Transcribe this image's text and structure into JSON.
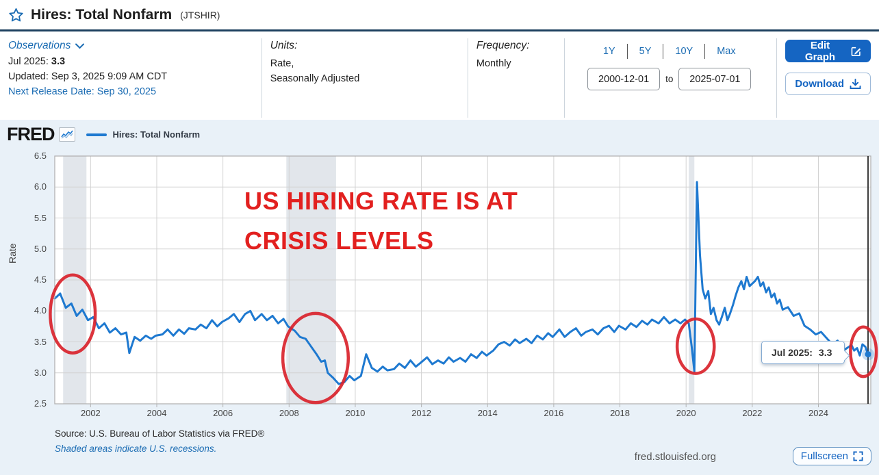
{
  "header": {
    "title": "Hires: Total Nonfarm",
    "series_id": "(JTSHIR)",
    "observations_label": "Observations",
    "latest_obs_label": "Jul 2025:",
    "latest_obs_value": "3.3",
    "updated": "Updated: Sep 3, 2025 9:09 AM CDT",
    "next_release": "Next Release Date: Sep 30, 2025",
    "units_label": "Units:",
    "units_line1": "Rate,",
    "units_line2": "Seasonally Adjusted",
    "frequency_label": "Frequency:",
    "frequency_value": "Monthly",
    "ranges": [
      "1Y",
      "5Y",
      "10Y",
      "Max"
    ],
    "date_from": "2000-12-01",
    "date_separator": "to",
    "date_to": "2025-07-01",
    "edit_graph_label": "Edit Graph",
    "download_label": "Download"
  },
  "chart": {
    "brand": "FRED",
    "legend_label": "Hires: Total Nonfarm",
    "tooltip_date": "Jul 2025:",
    "tooltip_value": "3.3",
    "source_line1": "Source: U.S. Bureau of Labor Statistics via FRED®",
    "source_line2": "Shaded areas indicate U.S. recessions.",
    "watermark": "fred.stlouisfed.org",
    "fullscreen_label": "Fullscreen"
  },
  "colors": {
    "link_blue": "#1b6cb3",
    "button_blue": "#1565c2",
    "series_line": "#1e79d0",
    "annotation_red": "#e2201f",
    "recession_band": "#e2e6eb",
    "gridline": "#d2d2d2",
    "plot_border": "#b3b3b3",
    "crosshair": "#3c3c3c",
    "chart_background": "#e9f1f8"
  },
  "chart_data": {
    "type": "line",
    "title": "Hires: Total Nonfarm (JTSHIR)",
    "xlabel": "",
    "ylabel": "Rate",
    "xlim": [
      2000.917,
      2025.583
    ],
    "ylim": [
      2.5,
      6.5
    ],
    "x_ticks": [
      2002,
      2004,
      2006,
      2008,
      2010,
      2012,
      2014,
      2016,
      2018,
      2020,
      2022,
      2024
    ],
    "y_ticks": [
      2.5,
      3.0,
      3.5,
      4.0,
      4.5,
      5.0,
      5.5,
      6.0,
      6.5
    ],
    "grid": true,
    "legend_position": "top-left",
    "recessions": [
      [
        2001.17,
        2001.875
      ],
      [
        2007.917,
        2009.42
      ],
      [
        2020.08,
        2020.25
      ]
    ],
    "annotations": {
      "text_line1": "US HIRING RATE IS AT",
      "text_line2": "CRISIS LEVELS",
      "ellipses": [
        {
          "cx": 2001.46,
          "cy": 3.95,
          "rx": 0.68,
          "ry": 0.63
        },
        {
          "cx": 2008.8,
          "cy": 3.24,
          "rx": 0.99,
          "ry": 0.72
        },
        {
          "cx": 2020.29,
          "cy": 3.43,
          "rx": 0.56,
          "ry": 0.44
        },
        {
          "cx": 2025.36,
          "cy": 3.34,
          "rx": 0.39,
          "ry": 0.4
        }
      ]
    },
    "last_point": {
      "x": 2025.5,
      "y": 3.3,
      "label": "Jul 2025",
      "value": "3.3"
    },
    "series": [
      {
        "name": "Hires: Total Nonfarm",
        "color": "#1e79d0",
        "points": [
          [
            2000.92,
            4.2
          ],
          [
            2001.08,
            4.28
          ],
          [
            2001.25,
            4.05
          ],
          [
            2001.42,
            4.12
          ],
          [
            2001.58,
            3.92
          ],
          [
            2001.75,
            4.02
          ],
          [
            2001.92,
            3.85
          ],
          [
            2002.08,
            3.9
          ],
          [
            2002.25,
            3.72
          ],
          [
            2002.42,
            3.8
          ],
          [
            2002.58,
            3.65
          ],
          [
            2002.75,
            3.72
          ],
          [
            2002.92,
            3.62
          ],
          [
            2003.08,
            3.65
          ],
          [
            2003.17,
            3.32
          ],
          [
            2003.33,
            3.58
          ],
          [
            2003.5,
            3.52
          ],
          [
            2003.67,
            3.6
          ],
          [
            2003.83,
            3.55
          ],
          [
            2003.97,
            3.6
          ],
          [
            2004.17,
            3.62
          ],
          [
            2004.33,
            3.7
          ],
          [
            2004.5,
            3.6
          ],
          [
            2004.67,
            3.7
          ],
          [
            2004.83,
            3.63
          ],
          [
            2004.97,
            3.72
          ],
          [
            2005.17,
            3.7
          ],
          [
            2005.33,
            3.78
          ],
          [
            2005.5,
            3.72
          ],
          [
            2005.67,
            3.85
          ],
          [
            2005.83,
            3.75
          ],
          [
            2005.97,
            3.82
          ],
          [
            2006.17,
            3.88
          ],
          [
            2006.33,
            3.95
          ],
          [
            2006.5,
            3.82
          ],
          [
            2006.67,
            3.95
          ],
          [
            2006.83,
            4.0
          ],
          [
            2006.97,
            3.85
          ],
          [
            2007.17,
            3.95
          ],
          [
            2007.33,
            3.85
          ],
          [
            2007.5,
            3.92
          ],
          [
            2007.67,
            3.8
          ],
          [
            2007.83,
            3.87
          ],
          [
            2007.97,
            3.75
          ],
          [
            2008.17,
            3.68
          ],
          [
            2008.33,
            3.58
          ],
          [
            2008.5,
            3.55
          ],
          [
            2008.67,
            3.42
          ],
          [
            2008.83,
            3.3
          ],
          [
            2008.97,
            3.18
          ],
          [
            2009.08,
            3.2
          ],
          [
            2009.17,
            3.0
          ],
          [
            2009.33,
            2.92
          ],
          [
            2009.5,
            2.82
          ],
          [
            2009.67,
            2.85
          ],
          [
            2009.83,
            2.95
          ],
          [
            2009.97,
            2.88
          ],
          [
            2010.17,
            2.95
          ],
          [
            2010.33,
            3.3
          ],
          [
            2010.5,
            3.08
          ],
          [
            2010.67,
            3.02
          ],
          [
            2010.83,
            3.1
          ],
          [
            2010.97,
            3.04
          ],
          [
            2011.17,
            3.06
          ],
          [
            2011.33,
            3.15
          ],
          [
            2011.5,
            3.08
          ],
          [
            2011.67,
            3.2
          ],
          [
            2011.83,
            3.1
          ],
          [
            2011.97,
            3.16
          ],
          [
            2012.17,
            3.25
          ],
          [
            2012.33,
            3.14
          ],
          [
            2012.5,
            3.2
          ],
          [
            2012.67,
            3.15
          ],
          [
            2012.83,
            3.25
          ],
          [
            2012.97,
            3.18
          ],
          [
            2013.17,
            3.24
          ],
          [
            2013.33,
            3.18
          ],
          [
            2013.5,
            3.3
          ],
          [
            2013.67,
            3.24
          ],
          [
            2013.83,
            3.34
          ],
          [
            2013.97,
            3.28
          ],
          [
            2014.17,
            3.36
          ],
          [
            2014.33,
            3.46
          ],
          [
            2014.5,
            3.5
          ],
          [
            2014.67,
            3.44
          ],
          [
            2014.83,
            3.54
          ],
          [
            2014.97,
            3.48
          ],
          [
            2015.17,
            3.55
          ],
          [
            2015.33,
            3.48
          ],
          [
            2015.5,
            3.6
          ],
          [
            2015.67,
            3.54
          ],
          [
            2015.83,
            3.64
          ],
          [
            2015.97,
            3.58
          ],
          [
            2016.17,
            3.7
          ],
          [
            2016.33,
            3.58
          ],
          [
            2016.5,
            3.66
          ],
          [
            2016.67,
            3.72
          ],
          [
            2016.83,
            3.6
          ],
          [
            2016.97,
            3.66
          ],
          [
            2017.17,
            3.7
          ],
          [
            2017.33,
            3.62
          ],
          [
            2017.5,
            3.72
          ],
          [
            2017.67,
            3.76
          ],
          [
            2017.83,
            3.66
          ],
          [
            2017.97,
            3.76
          ],
          [
            2018.17,
            3.7
          ],
          [
            2018.33,
            3.8
          ],
          [
            2018.5,
            3.74
          ],
          [
            2018.67,
            3.84
          ],
          [
            2018.83,
            3.78
          ],
          [
            2018.97,
            3.86
          ],
          [
            2019.17,
            3.8
          ],
          [
            2019.33,
            3.9
          ],
          [
            2019.5,
            3.8
          ],
          [
            2019.67,
            3.86
          ],
          [
            2019.83,
            3.8
          ],
          [
            2019.97,
            3.86
          ],
          [
            2020.08,
            3.8
          ],
          [
            2020.17,
            3.42
          ],
          [
            2020.25,
            3.02
          ],
          [
            2020.33,
            6.08
          ],
          [
            2020.42,
            4.9
          ],
          [
            2020.5,
            4.35
          ],
          [
            2020.58,
            4.2
          ],
          [
            2020.67,
            4.32
          ],
          [
            2020.75,
            3.95
          ],
          [
            2020.83,
            4.05
          ],
          [
            2020.92,
            3.85
          ],
          [
            2021.0,
            3.78
          ],
          [
            2021.08,
            3.9
          ],
          [
            2021.17,
            4.05
          ],
          [
            2021.25,
            3.85
          ],
          [
            2021.33,
            3.96
          ],
          [
            2021.42,
            4.1
          ],
          [
            2021.5,
            4.25
          ],
          [
            2021.58,
            4.38
          ],
          [
            2021.67,
            4.48
          ],
          [
            2021.75,
            4.35
          ],
          [
            2021.83,
            4.55
          ],
          [
            2021.92,
            4.4
          ],
          [
            2022.08,
            4.48
          ],
          [
            2022.17,
            4.55
          ],
          [
            2022.25,
            4.4
          ],
          [
            2022.33,
            4.46
          ],
          [
            2022.42,
            4.3
          ],
          [
            2022.5,
            4.38
          ],
          [
            2022.58,
            4.22
          ],
          [
            2022.67,
            4.28
          ],
          [
            2022.75,
            4.12
          ],
          [
            2022.83,
            4.18
          ],
          [
            2022.92,
            4.02
          ],
          [
            2023.08,
            4.06
          ],
          [
            2023.25,
            3.92
          ],
          [
            2023.42,
            3.96
          ],
          [
            2023.58,
            3.76
          ],
          [
            2023.75,
            3.7
          ],
          [
            2023.92,
            3.62
          ],
          [
            2024.08,
            3.66
          ],
          [
            2024.25,
            3.56
          ],
          [
            2024.42,
            3.46
          ],
          [
            2024.58,
            3.52
          ],
          [
            2024.75,
            3.36
          ],
          [
            2024.92,
            3.42
          ],
          [
            2025.0,
            3.45
          ],
          [
            2025.08,
            3.36
          ],
          [
            2025.17,
            3.4
          ],
          [
            2025.25,
            3.28
          ],
          [
            2025.33,
            3.46
          ],
          [
            2025.42,
            3.42
          ],
          [
            2025.5,
            3.3
          ]
        ]
      }
    ]
  }
}
